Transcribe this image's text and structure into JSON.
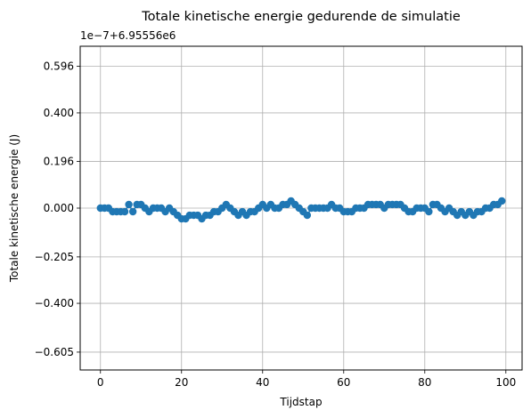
{
  "chart_data": {
    "type": "line",
    "title": "Totale kinetische energie gedurende de simulatie",
    "xlabel": "Tijdstap",
    "ylabel": "Totale kinetische energie (J)",
    "offset_text": "1e−7+6.95556e6",
    "xlim": [
      -5,
      104
    ],
    "ylim": [
      -0.68,
      0.68
    ],
    "x_ticks": [
      0,
      20,
      40,
      60,
      80,
      100
    ],
    "x_tick_labels": [
      "0",
      "20",
      "40",
      "60",
      "80",
      "100"
    ],
    "y_ticks": [
      -0.605,
      -0.4,
      -0.205,
      0.0,
      0.196,
      0.4,
      0.596
    ],
    "y_tick_labels": [
      "−0.605",
      "−0.400",
      "−0.205",
      "0.000",
      "0.196",
      "0.400",
      "0.596"
    ],
    "grid": true,
    "marker": "circle",
    "color": "#1f77b4",
    "series": [
      {
        "name": "",
        "x": [
          0,
          1,
          2,
          3,
          4,
          5,
          6,
          7,
          8,
          9,
          10,
          11,
          12,
          13,
          14,
          15,
          16,
          17,
          18,
          19,
          20,
          21,
          22,
          23,
          24,
          25,
          26,
          27,
          28,
          29,
          30,
          31,
          32,
          33,
          34,
          35,
          36,
          37,
          38,
          39,
          40,
          41,
          42,
          43,
          44,
          45,
          46,
          47,
          48,
          49,
          50,
          51,
          52,
          53,
          54,
          55,
          56,
          57,
          58,
          59,
          60,
          61,
          62,
          63,
          64,
          65,
          66,
          67,
          68,
          69,
          70,
          71,
          72,
          73,
          74,
          75,
          76,
          77,
          78,
          79,
          80,
          81,
          82,
          83,
          84,
          85,
          86,
          87,
          88,
          89,
          90,
          91,
          92,
          93,
          94,
          95,
          96,
          97,
          98,
          99
        ],
        "values": [
          0.0,
          0.0,
          0.0,
          -0.015,
          -0.015,
          -0.015,
          -0.015,
          0.015,
          -0.015,
          0.015,
          0.015,
          0.0,
          -0.015,
          0.0,
          0.0,
          0.0,
          -0.015,
          0.0,
          -0.015,
          -0.03,
          -0.045,
          -0.045,
          -0.03,
          -0.03,
          -0.03,
          -0.045,
          -0.03,
          -0.03,
          -0.015,
          -0.015,
          0.0,
          0.015,
          0.0,
          -0.015,
          -0.03,
          -0.015,
          -0.03,
          -0.015,
          -0.015,
          0.0,
          0.015,
          0.0,
          0.015,
          0.0,
          0.0,
          0.015,
          0.015,
          0.03,
          0.015,
          0.0,
          -0.015,
          -0.03,
          0.0,
          0.0,
          0.0,
          0.0,
          0.0,
          0.015,
          0.0,
          0.0,
          -0.015,
          -0.015,
          -0.015,
          0.0,
          0.0,
          0.0,
          0.015,
          0.015,
          0.015,
          0.015,
          0.0,
          0.015,
          0.015,
          0.015,
          0.015,
          0.0,
          -0.015,
          -0.015,
          0.0,
          0.0,
          0.0,
          -0.015,
          0.015,
          0.015,
          0.0,
          -0.015,
          0.0,
          -0.015,
          -0.03,
          -0.015,
          -0.03,
          -0.015,
          -0.03,
          -0.015,
          -0.015,
          0.0,
          0.0,
          0.015,
          0.015,
          0.03
        ]
      }
    ]
  }
}
